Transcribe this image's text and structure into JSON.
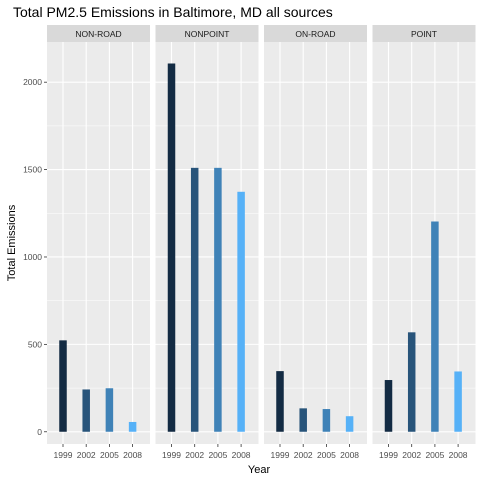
{
  "chart_data": {
    "type": "bar",
    "title": "Total PM2.5 Emissions in Baltimore, MD all sources",
    "xlabel": "Year",
    "ylabel": "Total Emissions",
    "categories": [
      "1999",
      "2002",
      "2005",
      "2008"
    ],
    "ylim": [
      -70,
      2230
    ],
    "yticks": [
      0,
      500,
      1000,
      1500,
      2000
    ],
    "grid": true,
    "legend": "none",
    "panels": [
      {
        "name": "NON-ROAD",
        "values": [
          523,
          242,
          249,
          56
        ]
      },
      {
        "name": "NONPOINT",
        "values": [
          2107,
          1510,
          1510,
          1373
        ]
      },
      {
        "name": "ON-ROAD",
        "values": [
          347,
          134,
          130,
          89
        ]
      },
      {
        "name": "POINT",
        "values": [
          296,
          569,
          1203,
          345
        ]
      }
    ],
    "colors": [
      "#132b43",
      "#28547a",
      "#3f82b7",
      "#56b1f7"
    ],
    "panel_background": "#ebebeb",
    "strip_background": "#d9d9d9",
    "grid_color": "#ffffff"
  }
}
